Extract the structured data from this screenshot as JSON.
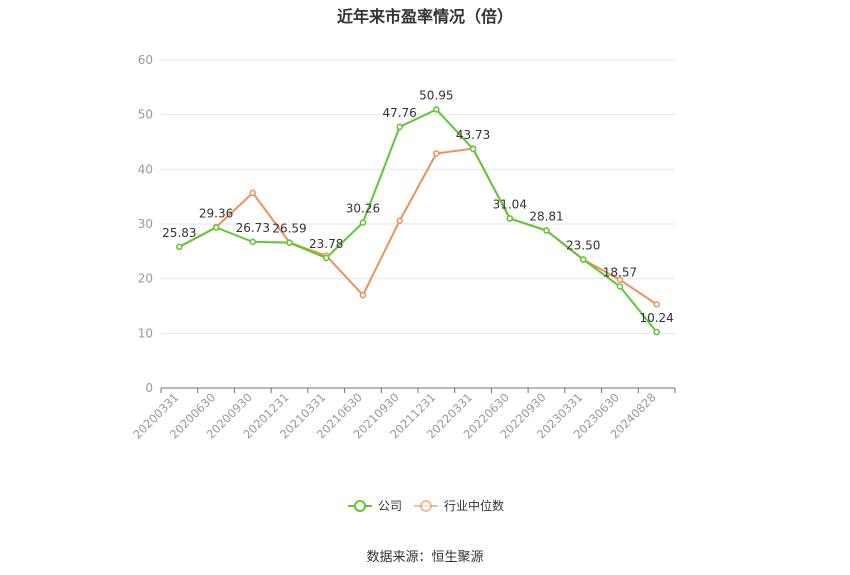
{
  "title": "近年来市盈率情况（倍）",
  "source": "数据来源：恒生聚源",
  "chart_data": {
    "type": "line",
    "title": "近年来市盈率情况（倍）",
    "xlabel": "",
    "ylabel": "",
    "ylim": [
      0,
      60
    ],
    "yticks": [
      0,
      10,
      20,
      30,
      40,
      50,
      60
    ],
    "grid": true,
    "legend_position": "bottom-center",
    "categories": [
      "20200331",
      "20200630",
      "20200930",
      "20201231",
      "20210331",
      "20210630",
      "20210930",
      "20211231",
      "20220331",
      "20220630",
      "20220930",
      "20230331",
      "20230630",
      "20240828"
    ],
    "series": [
      {
        "name": "公司",
        "color": "#5ec832",
        "values": [
          25.83,
          29.36,
          26.73,
          26.59,
          23.78,
          30.26,
          47.76,
          50.95,
          43.73,
          31.04,
          28.81,
          23.5,
          18.57,
          10.24
        ],
        "labels": [
          "25.83",
          "29.36",
          "26.73",
          "26.59",
          "23.78",
          "30.26",
          "47.76",
          "50.95",
          "43.73",
          "31.04",
          "28.81",
          "23.50",
          "18.57",
          "10.24"
        ]
      },
      {
        "name": "行业中位数",
        "color": "#f0915a",
        "values": [
          25.8,
          29.4,
          35.7,
          26.6,
          24.2,
          17.0,
          30.6,
          42.9,
          43.8,
          31.0,
          28.8,
          23.5,
          19.8,
          15.3
        ]
      }
    ]
  }
}
